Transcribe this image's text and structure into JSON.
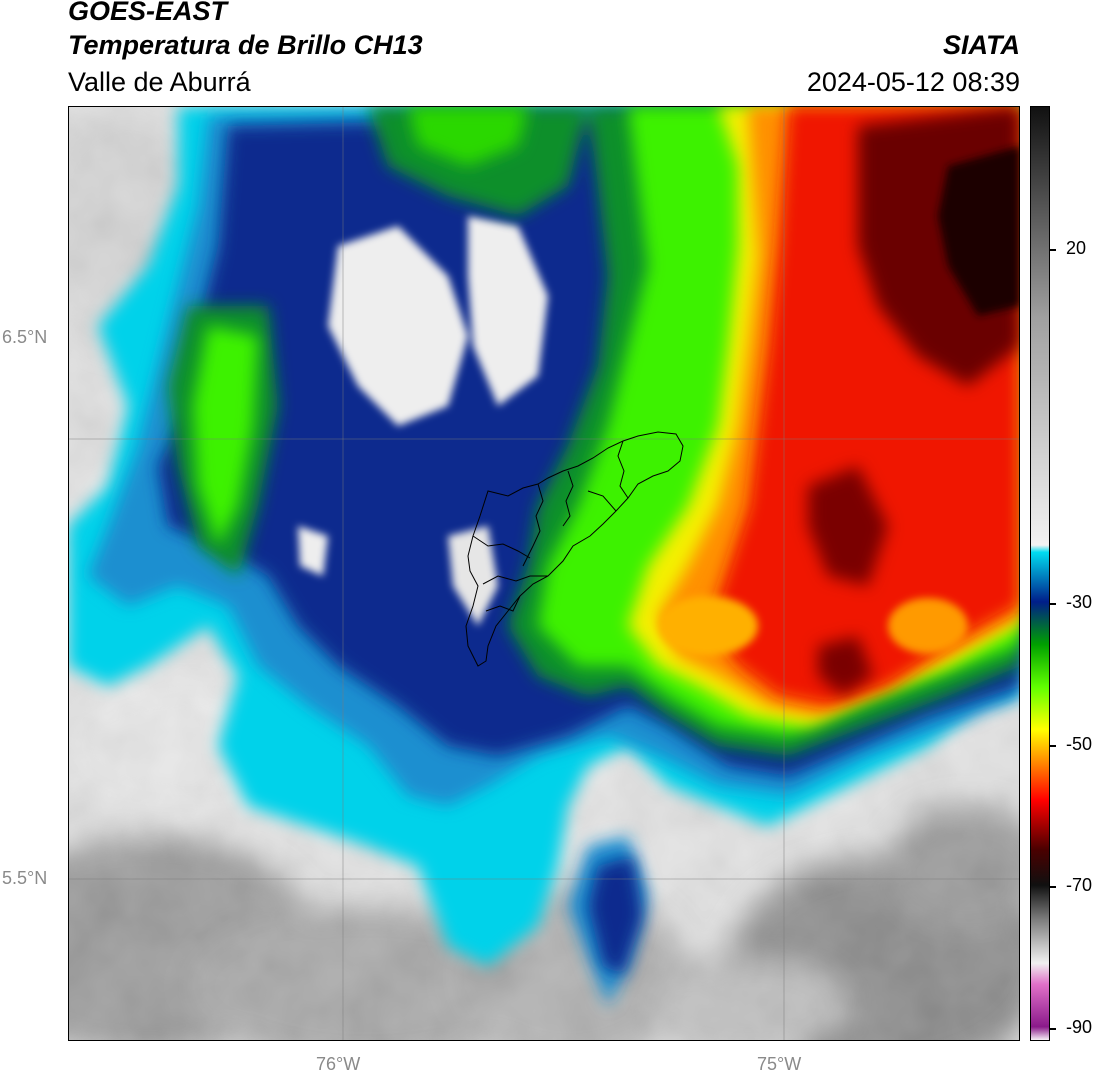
{
  "header": {
    "title": "GOES-EAST",
    "subtitle": "Temperatura de Brillo CH13",
    "region": "Valle de Aburrá",
    "organization": "SIATA",
    "timestamp": "2024-05-12 08:39"
  },
  "axes": {
    "latitude_ticks": [
      "6.5°N",
      "5.5°N"
    ],
    "longitude_ticks": [
      "76°W",
      "75°W"
    ]
  },
  "colorbar": {
    "tick_labels": [
      "20",
      "-30",
      "-50",
      "-70",
      "-90"
    ],
    "range": [
      -92,
      40
    ],
    "stops": [
      {
        "value": -92,
        "color": "#ffffff"
      },
      {
        "value": -90,
        "color": "#8a1a8a"
      },
      {
        "value": -84,
        "color": "#e070c8"
      },
      {
        "value": -81,
        "color": "#f0f0f0"
      },
      {
        "value": -75,
        "color": "#808080"
      },
      {
        "value": -70,
        "color": "#101010"
      },
      {
        "value": -65,
        "color": "#4a0000"
      },
      {
        "value": -58,
        "color": "#ff0000"
      },
      {
        "value": -52,
        "color": "#ff9a00"
      },
      {
        "value": -48,
        "color": "#ffff00"
      },
      {
        "value": -42,
        "color": "#60ff00"
      },
      {
        "value": -36,
        "color": "#00a000"
      },
      {
        "value": -30,
        "color": "#001e8a"
      },
      {
        "value": -23,
        "color": "#00dcf0"
      },
      {
        "value": -22,
        "color": "#f2f2f2"
      },
      {
        "value": 10,
        "color": "#a0a0a0"
      },
      {
        "value": 40,
        "color": "#101010"
      }
    ]
  },
  "map": {
    "colors": {
      "cloud_free_light": "#ebebeb",
      "cloud_free_mid": "#c4c4c4",
      "cloud_free_dark": "#8e8e8e",
      "cyan": "#00d8ee",
      "blue_light": "#1aa0d8",
      "blue_dark": "#0a2a8c",
      "green_dark": "#0a8a2a",
      "green_bright": "#3cff00",
      "yellow": "#ffee00",
      "orange": "#ff8800",
      "red": "#ee1500",
      "dark_red": "#6a0000",
      "black": "#1a0000",
      "basin_outline": "#000000"
    }
  }
}
